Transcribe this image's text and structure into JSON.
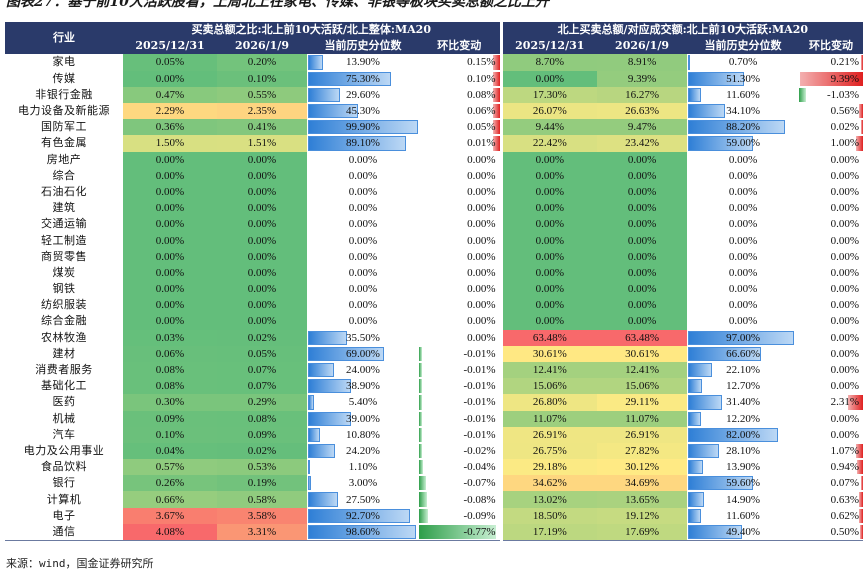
{
  "title": "图表27：基于前10大活跃股看，上周北上在家电、传媒、非银等板块买卖总额之比上升",
  "source": "来源：wind，国金证券研究所",
  "header": {
    "industry": "行业",
    "group1": "买卖总额之比:北上前10大活跃/北上整体:MA20",
    "group2": "北上买卖总额/对应成交额:北上前10大活跃:MA20",
    "cols": [
      "2025/12/31",
      "2026/1/9",
      "当前历史分位数",
      "环比变动"
    ]
  },
  "rows": [
    {
      "name": "家电",
      "a1": "0.05%",
      "a2": "0.20%",
      "ap": "13.90%",
      "ac": "0.15%",
      "b1": "8.70%",
      "b2": "8.91%",
      "bp": "0.70%",
      "bc": "0.21%"
    },
    {
      "name": "传媒",
      "a1": "0.00%",
      "a2": "0.10%",
      "ap": "75.30%",
      "ac": "0.10%",
      "b1": "0.00%",
      "b2": "9.39%",
      "bp": "51.30%",
      "bc": "9.39%"
    },
    {
      "name": "非银行金融",
      "a1": "0.47%",
      "a2": "0.55%",
      "ap": "29.60%",
      "ac": "0.08%",
      "b1": "17.30%",
      "b2": "16.27%",
      "bp": "11.60%",
      "bc": "-1.03%"
    },
    {
      "name": "电力设备及新能源",
      "a1": "2.29%",
      "a2": "2.35%",
      "ap": "45.30%",
      "ac": "0.06%",
      "b1": "26.07%",
      "b2": "26.63%",
      "bp": "34.10%",
      "bc": "0.56%"
    },
    {
      "name": "国防军工",
      "a1": "0.36%",
      "a2": "0.41%",
      "ap": "99.90%",
      "ac": "0.05%",
      "b1": "9.44%",
      "b2": "9.47%",
      "bp": "88.20%",
      "bc": "0.02%"
    },
    {
      "name": "有色金属",
      "a1": "1.50%",
      "a2": "1.51%",
      "ap": "89.10%",
      "ac": "0.01%",
      "b1": "22.42%",
      "b2": "23.42%",
      "bp": "59.00%",
      "bc": "1.00%"
    },
    {
      "name": "房地产",
      "a1": "0.00%",
      "a2": "0.00%",
      "ap": "0.00%",
      "ac": "0.00%",
      "b1": "0.00%",
      "b2": "0.00%",
      "bp": "0.00%",
      "bc": "0.00%"
    },
    {
      "name": "综合",
      "a1": "0.00%",
      "a2": "0.00%",
      "ap": "0.00%",
      "ac": "0.00%",
      "b1": "0.00%",
      "b2": "0.00%",
      "bp": "0.00%",
      "bc": "0.00%"
    },
    {
      "name": "石油石化",
      "a1": "0.00%",
      "a2": "0.00%",
      "ap": "0.00%",
      "ac": "0.00%",
      "b1": "0.00%",
      "b2": "0.00%",
      "bp": "0.00%",
      "bc": "0.00%"
    },
    {
      "name": "建筑",
      "a1": "0.00%",
      "a2": "0.00%",
      "ap": "0.00%",
      "ac": "0.00%",
      "b1": "0.00%",
      "b2": "0.00%",
      "bp": "0.00%",
      "bc": "0.00%"
    },
    {
      "name": "交通运输",
      "a1": "0.00%",
      "a2": "0.00%",
      "ap": "0.00%",
      "ac": "0.00%",
      "b1": "0.00%",
      "b2": "0.00%",
      "bp": "0.00%",
      "bc": "0.00%"
    },
    {
      "name": "轻工制造",
      "a1": "0.00%",
      "a2": "0.00%",
      "ap": "0.00%",
      "ac": "0.00%",
      "b1": "0.00%",
      "b2": "0.00%",
      "bp": "0.00%",
      "bc": "0.00%"
    },
    {
      "name": "商贸零售",
      "a1": "0.00%",
      "a2": "0.00%",
      "ap": "0.00%",
      "ac": "0.00%",
      "b1": "0.00%",
      "b2": "0.00%",
      "bp": "0.00%",
      "bc": "0.00%"
    },
    {
      "name": "煤炭",
      "a1": "0.00%",
      "a2": "0.00%",
      "ap": "0.00%",
      "ac": "0.00%",
      "b1": "0.00%",
      "b2": "0.00%",
      "bp": "0.00%",
      "bc": "0.00%"
    },
    {
      "name": "钢铁",
      "a1": "0.00%",
      "a2": "0.00%",
      "ap": "0.00%",
      "ac": "0.00%",
      "b1": "0.00%",
      "b2": "0.00%",
      "bp": "0.00%",
      "bc": "0.00%"
    },
    {
      "name": "纺织服装",
      "a1": "0.00%",
      "a2": "0.00%",
      "ap": "0.00%",
      "ac": "0.00%",
      "b1": "0.00%",
      "b2": "0.00%",
      "bp": "0.00%",
      "bc": "0.00%"
    },
    {
      "name": "综合金融",
      "a1": "0.00%",
      "a2": "0.00%",
      "ap": "0.00%",
      "ac": "0.00%",
      "b1": "0.00%",
      "b2": "0.00%",
      "bp": "0.00%",
      "bc": "0.00%"
    },
    {
      "name": "农林牧渔",
      "a1": "0.03%",
      "a2": "0.02%",
      "ap": "35.50%",
      "ac": "0.00%",
      "b1": "63.48%",
      "b2": "63.48%",
      "bp": "97.00%",
      "bc": "0.00%"
    },
    {
      "name": "建材",
      "a1": "0.06%",
      "a2": "0.05%",
      "ap": "69.00%",
      "ac": "-0.01%",
      "b1": "30.61%",
      "b2": "30.61%",
      "bp": "66.60%",
      "bc": "0.00%"
    },
    {
      "name": "消费者服务",
      "a1": "0.08%",
      "a2": "0.07%",
      "ap": "24.00%",
      "ac": "-0.01%",
      "b1": "12.41%",
      "b2": "12.41%",
      "bp": "22.10%",
      "bc": "0.00%"
    },
    {
      "name": "基础化工",
      "a1": "0.08%",
      "a2": "0.07%",
      "ap": "38.90%",
      "ac": "-0.01%",
      "b1": "15.06%",
      "b2": "15.06%",
      "bp": "12.70%",
      "bc": "0.00%"
    },
    {
      "name": "医药",
      "a1": "0.30%",
      "a2": "0.29%",
      "ap": "5.40%",
      "ac": "-0.01%",
      "b1": "26.80%",
      "b2": "29.11%",
      "bp": "31.40%",
      "bc": "2.31%"
    },
    {
      "name": "机械",
      "a1": "0.09%",
      "a2": "0.08%",
      "ap": "39.00%",
      "ac": "-0.01%",
      "b1": "11.07%",
      "b2": "11.07%",
      "bp": "12.20%",
      "bc": "0.00%"
    },
    {
      "name": "汽车",
      "a1": "0.10%",
      "a2": "0.09%",
      "ap": "10.80%",
      "ac": "-0.01%",
      "b1": "26.91%",
      "b2": "26.91%",
      "bp": "82.00%",
      "bc": "0.00%"
    },
    {
      "name": "电力及公用事业",
      "a1": "0.04%",
      "a2": "0.02%",
      "ap": "24.20%",
      "ac": "-0.02%",
      "b1": "26.75%",
      "b2": "27.82%",
      "bp": "28.10%",
      "bc": "1.07%"
    },
    {
      "name": "食品饮料",
      "a1": "0.57%",
      "a2": "0.53%",
      "ap": "1.10%",
      "ac": "-0.04%",
      "b1": "29.18%",
      "b2": "30.12%",
      "bp": "13.90%",
      "bc": "0.94%"
    },
    {
      "name": "银行",
      "a1": "0.26%",
      "a2": "0.19%",
      "ap": "3.00%",
      "ac": "-0.07%",
      "b1": "34.62%",
      "b2": "34.69%",
      "bp": "59.60%",
      "bc": "0.07%"
    },
    {
      "name": "计算机",
      "a1": "0.66%",
      "a2": "0.58%",
      "ap": "27.50%",
      "ac": "-0.08%",
      "b1": "13.02%",
      "b2": "13.65%",
      "bp": "14.90%",
      "bc": "0.63%"
    },
    {
      "name": "电子",
      "a1": "3.67%",
      "a2": "3.58%",
      "ap": "92.70%",
      "ac": "-0.09%",
      "b1": "18.50%",
      "b2": "19.12%",
      "bp": "11.60%",
      "bc": "0.62%"
    },
    {
      "name": "通信",
      "a1": "4.08%",
      "a2": "3.31%",
      "ap": "98.60%",
      "ac": "-0.77%",
      "b1": "17.19%",
      "b2": "17.69%",
      "bp": "49.40%",
      "bc": "0.50%"
    }
  ]
}
